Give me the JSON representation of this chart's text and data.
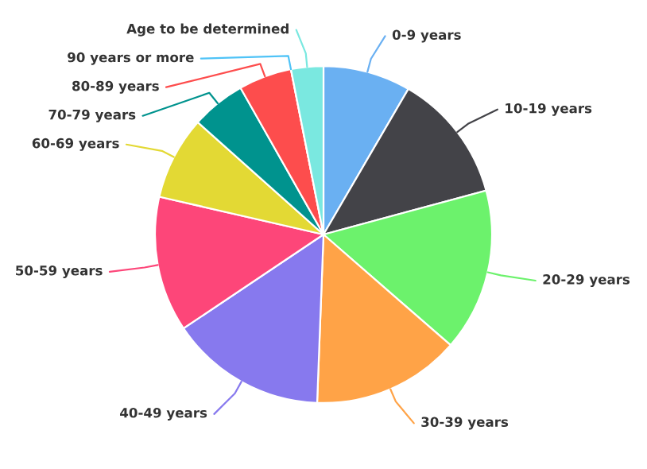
{
  "chart_data": {
    "type": "pie",
    "categories": [
      "0-9 years",
      "10-19 years",
      "20-29 years",
      "30-39 years",
      "40-49 years",
      "50-59 years",
      "60-69 years",
      "70-79 years",
      "80-89 years",
      "90 years or more",
      "Age to be determined"
    ],
    "values": [
      8.4,
      12.4,
      15.6,
      14.2,
      15.0,
      13.0,
      8.0,
      5.2,
      5.1,
      0,
      3.1
    ],
    "colors": [
      "#6ab0f2",
      "#434348",
      "#6cf26c",
      "#ffa347",
      "#8779ee",
      "#fd4679",
      "#e3d934",
      "#00938e",
      "#fd4d4d",
      "#4fc3f7",
      "#7ae8e0"
    ]
  }
}
